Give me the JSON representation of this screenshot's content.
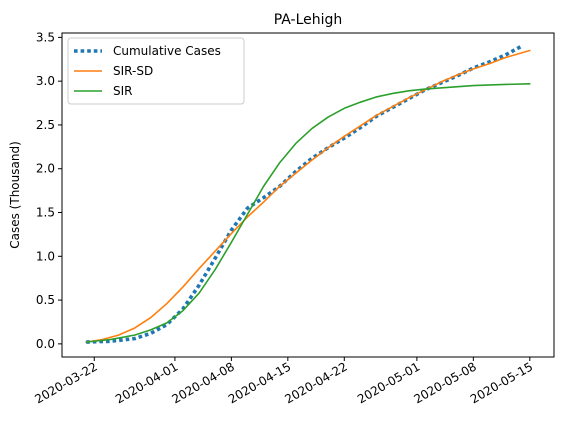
{
  "chart_data": {
    "type": "line",
    "title": "PA-Lehigh",
    "xlabel": "",
    "ylabel": "Cases (Thousand)",
    "x_start": "2020-03-21",
    "x_end": "2020-05-15",
    "xlim": [
      "2020-03-18",
      "2020-05-18"
    ],
    "ylim": [
      -0.15,
      3.55
    ],
    "x_ticks": [
      "2020-03-22",
      "2020-04-01",
      "2020-04-08",
      "2020-04-15",
      "2020-04-22",
      "2020-05-01",
      "2020-05-08",
      "2020-05-15"
    ],
    "y_ticks": [
      "0.0",
      "0.5",
      "1.0",
      "1.5",
      "2.0",
      "2.5",
      "3.0",
      "3.5"
    ],
    "grid": false,
    "legend_position": "top-left",
    "series": [
      {
        "name": "Cumulative Cases",
        "color": "#1f77b4",
        "style": "dotted",
        "points": [
          [
            "2020-03-21",
            0.02
          ],
          [
            "2020-03-24",
            0.03
          ],
          [
            "2020-03-27",
            0.06
          ],
          [
            "2020-03-29",
            0.12
          ],
          [
            "2020-03-31",
            0.22
          ],
          [
            "2020-04-02",
            0.4
          ],
          [
            "2020-04-04",
            0.67
          ],
          [
            "2020-04-06",
            0.98
          ],
          [
            "2020-04-08",
            1.3
          ],
          [
            "2020-04-10",
            1.55
          ],
          [
            "2020-04-12",
            1.67
          ],
          [
            "2020-04-14",
            1.8
          ],
          [
            "2020-04-16",
            1.97
          ],
          [
            "2020-04-18",
            2.12
          ],
          [
            "2020-04-20",
            2.24
          ],
          [
            "2020-04-22",
            2.35
          ],
          [
            "2020-04-24",
            2.47
          ],
          [
            "2020-04-26",
            2.6
          ],
          [
            "2020-04-28",
            2.7
          ],
          [
            "2020-04-30",
            2.8
          ],
          [
            "2020-05-02",
            2.9
          ],
          [
            "2020-05-04",
            2.98
          ],
          [
            "2020-05-06",
            3.06
          ],
          [
            "2020-05-08",
            3.15
          ],
          [
            "2020-05-10",
            3.22
          ],
          [
            "2020-05-12",
            3.3
          ],
          [
            "2020-05-14",
            3.4
          ]
        ]
      },
      {
        "name": "SIR-SD",
        "color": "#ff7f0e",
        "style": "solid",
        "points": [
          [
            "2020-03-21",
            0.02
          ],
          [
            "2020-03-23",
            0.05
          ],
          [
            "2020-03-25",
            0.1
          ],
          [
            "2020-03-27",
            0.18
          ],
          [
            "2020-03-29",
            0.3
          ],
          [
            "2020-03-31",
            0.46
          ],
          [
            "2020-04-02",
            0.65
          ],
          [
            "2020-04-04",
            0.86
          ],
          [
            "2020-04-06",
            1.06
          ],
          [
            "2020-04-08",
            1.26
          ],
          [
            "2020-04-10",
            1.45
          ],
          [
            "2020-04-12",
            1.62
          ],
          [
            "2020-04-14",
            1.8
          ],
          [
            "2020-04-16",
            1.95
          ],
          [
            "2020-04-18",
            2.1
          ],
          [
            "2020-04-20",
            2.24
          ],
          [
            "2020-04-22",
            2.37
          ],
          [
            "2020-04-24",
            2.49
          ],
          [
            "2020-04-26",
            2.61
          ],
          [
            "2020-04-28",
            2.71
          ],
          [
            "2020-04-30",
            2.81
          ],
          [
            "2020-05-02",
            2.9
          ],
          [
            "2020-05-04",
            2.99
          ],
          [
            "2020-05-06",
            3.07
          ],
          [
            "2020-05-08",
            3.14
          ],
          [
            "2020-05-10",
            3.2
          ],
          [
            "2020-05-12",
            3.27
          ],
          [
            "2020-05-15",
            3.35
          ]
        ]
      },
      {
        "name": "SIR",
        "color": "#2ca02c",
        "style": "solid",
        "points": [
          [
            "2020-03-21",
            0.02
          ],
          [
            "2020-03-24",
            0.05
          ],
          [
            "2020-03-27",
            0.1
          ],
          [
            "2020-03-29",
            0.16
          ],
          [
            "2020-03-31",
            0.24
          ],
          [
            "2020-04-02",
            0.38
          ],
          [
            "2020-04-04",
            0.58
          ],
          [
            "2020-04-06",
            0.85
          ],
          [
            "2020-04-08",
            1.16
          ],
          [
            "2020-04-10",
            1.48
          ],
          [
            "2020-04-12",
            1.8
          ],
          [
            "2020-04-14",
            2.07
          ],
          [
            "2020-04-16",
            2.29
          ],
          [
            "2020-04-18",
            2.46
          ],
          [
            "2020-04-20",
            2.59
          ],
          [
            "2020-04-22",
            2.69
          ],
          [
            "2020-04-24",
            2.76
          ],
          [
            "2020-04-26",
            2.82
          ],
          [
            "2020-04-28",
            2.86
          ],
          [
            "2020-04-30",
            2.89
          ],
          [
            "2020-05-02",
            2.91
          ],
          [
            "2020-05-05",
            2.93
          ],
          [
            "2020-05-08",
            2.95
          ],
          [
            "2020-05-11",
            2.96
          ],
          [
            "2020-05-15",
            2.97
          ]
        ]
      }
    ]
  }
}
